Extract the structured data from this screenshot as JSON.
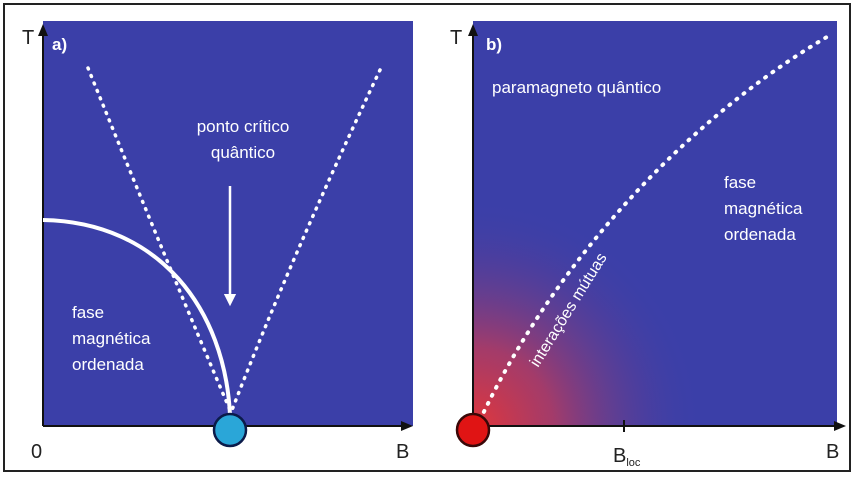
{
  "colors": {
    "panel_blue": "#3b3fa8",
    "critical_point_cyan": "#2aa6d8",
    "critical_point_red": "#e01414",
    "gradient_red": "#d23c3c"
  },
  "panel_a": {
    "label": "a)",
    "y_axis": "T",
    "x_axis": "B",
    "origin": "0",
    "annotation_critical_line1": "ponto crítico",
    "annotation_critical_line2": "quântico",
    "phase_line1": "fase",
    "phase_line2": "magnética",
    "phase_line3": "ordenada"
  },
  "panel_b": {
    "label": "b)",
    "y_axis": "T",
    "x_axis": "B",
    "tick_main": "B",
    "tick_sub": "loc",
    "region_top": "paramagneto quântico",
    "phase_line1": "fase",
    "phase_line2": "magnética",
    "phase_line3": "ordenada",
    "curve_label": "interações mútuas"
  }
}
